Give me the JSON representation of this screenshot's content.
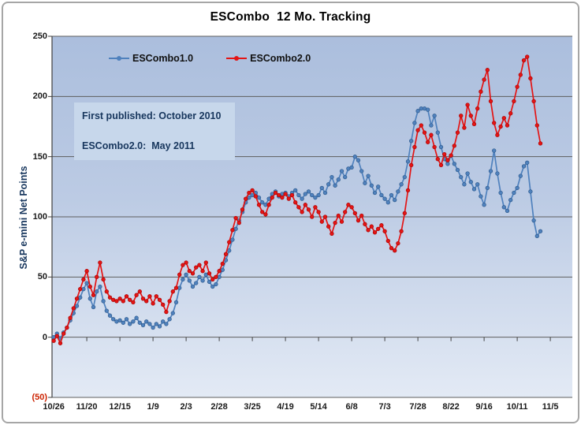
{
  "colors": {
    "gridline": "#5e5e5e",
    "axis": "#3f3f3f",
    "plot_bg_top": "#abbedd",
    "plot_bg_bottom": "#e3eaf5",
    "series1": "#4f81bd",
    "series2": "#e41414",
    "negative_tick": "#cc2200",
    "annotation_bg": "#c7d7eb",
    "annotation_text": "#17365d"
  },
  "chart_data": {
    "type": "line",
    "title": "ESCombo  12 Mo. Tracking",
    "xlabel": "",
    "ylabel": "S&P e-mini Net Points",
    "ylim": [
      -50,
      250
    ],
    "grid": true,
    "legend_position": "top-inside",
    "markers": true,
    "y_ticks": [
      {
        "label": "250",
        "value": 250
      },
      {
        "label": "200",
        "value": 200
      },
      {
        "label": "150",
        "value": 150
      },
      {
        "label": "100",
        "value": 100
      },
      {
        "label": "50",
        "value": 50
      },
      {
        "label": "0",
        "value": 0
      },
      {
        "label": "(50)",
        "value": -50,
        "negative": true
      }
    ],
    "x_tick_labels": [
      "10/26",
      "11/20",
      "12/15",
      "1/9",
      "2/3",
      "2/28",
      "3/25",
      "4/19",
      "5/14",
      "6/8",
      "7/3",
      "7/28",
      "8/22",
      "9/16",
      "10/11",
      "11/5"
    ],
    "points_per_tick": 10,
    "annotation": {
      "line1": "First published: October 2010",
      "line2": "ESCombo2.0:  May 2011"
    },
    "series": [
      {
        "name": "ESCombo1.0",
        "color": "#4f81bd",
        "edge": "#2e5a8c",
        "values": [
          0,
          3,
          -1,
          4,
          8,
          14,
          20,
          26,
          33,
          40,
          45,
          32,
          25,
          38,
          42,
          30,
          22,
          18,
          15,
          13,
          14,
          12,
          15,
          11,
          13,
          16,
          12,
          10,
          13,
          11,
          8,
          11,
          9,
          13,
          11,
          15,
          20,
          29,
          41,
          48,
          52,
          47,
          42,
          45,
          50,
          47,
          52,
          46,
          42,
          44,
          50,
          56,
          64,
          72,
          81,
          90,
          97,
          104,
          112,
          116,
          118,
          120,
          116,
          112,
          110,
          115,
          119,
          121,
          117,
          119,
          120,
          117,
          120,
          122,
          118,
          115,
          119,
          121,
          118,
          116,
          118,
          124,
          120,
          127,
          133,
          126,
          131,
          138,
          133,
          140,
          141,
          150,
          147,
          138,
          128,
          134,
          126,
          120,
          125,
          118,
          115,
          112,
          118,
          114,
          121,
          127,
          133,
          146,
          163,
          178,
          188,
          190,
          190,
          189,
          176,
          184,
          170,
          158,
          148,
          144,
          151,
          144,
          139,
          133,
          127,
          136,
          129,
          123,
          127,
          117,
          110,
          124,
          138,
          155,
          136,
          120,
          108,
          105,
          114,
          120,
          124,
          134,
          142,
          145,
          121,
          97,
          84,
          88
        ]
      },
      {
        "name": "ESCombo2.0",
        "color": "#e41414",
        "edge": "#a80000",
        "values": [
          -3,
          1,
          -5,
          3,
          8,
          16,
          24,
          32,
          40,
          48,
          55,
          42,
          35,
          50,
          62,
          48,
          38,
          33,
          31,
          30,
          32,
          30,
          34,
          31,
          29,
          35,
          38,
          32,
          30,
          34,
          28,
          34,
          31,
          27,
          21,
          30,
          38,
          41,
          52,
          60,
          62,
          55,
          53,
          58,
          60,
          55,
          62,
          53,
          48,
          50,
          55,
          61,
          69,
          79,
          89,
          99,
          95,
          106,
          115,
          120,
          122,
          117,
          110,
          104,
          102,
          110,
          116,
          120,
          118,
          116,
          119,
          115,
          118,
          112,
          108,
          104,
          110,
          106,
          100,
          108,
          104,
          96,
          100,
          92,
          86,
          95,
          101,
          96,
          104,
          110,
          108,
          103,
          97,
          101,
          94,
          89,
          92,
          87,
          90,
          93,
          88,
          80,
          74,
          72,
          78,
          88,
          103,
          122,
          143,
          158,
          172,
          176,
          170,
          162,
          168,
          158,
          148,
          143,
          152,
          147,
          151,
          159,
          170,
          184,
          174,
          193,
          184,
          177,
          190,
          204,
          214,
          222,
          196,
          178,
          168,
          175,
          182,
          176,
          186,
          196,
          208,
          218,
          230,
          233,
          215,
          196,
          176,
          161
        ]
      }
    ]
  }
}
